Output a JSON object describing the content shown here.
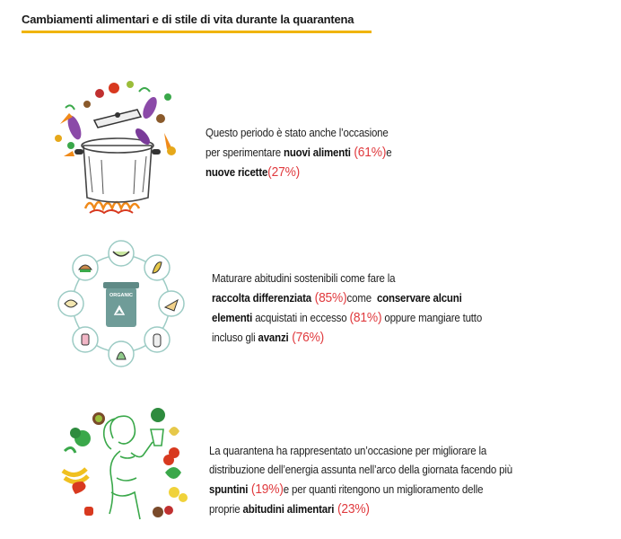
{
  "header": {
    "title": "Cambiamenti alimentari e di stile di vita durante la quarantena"
  },
  "section1": {
    "line1": "Questo periodo è stato anche l’occasione",
    "line2_pre": "per sperimentare ",
    "line2_bold": "nuovi alimenti",
    "line2_pct": " (61%)",
    "line2_post": "e",
    "line3_bold": "nuove ricette",
    "line3_pct": "(27%)"
  },
  "section2": {
    "line1": "Maturare abitudini sostenibili come fare la",
    "line2_bold": "raccolta differenziata",
    "line2_pct": " (85%)",
    "line2_mid": "come  ",
    "line2_bold2": "conservare alcuni",
    "line3_bold": "elementi",
    "line3_mid": " acquistati in eccesso ",
    "line3_pct": "(81%)",
    "line3_post": " oppure mangiare tutto",
    "line4_pre": "incluso gli ",
    "line4_bold": "avanzi",
    "line4_pct": " (76%)",
    "bin_label": "ORGANIC"
  },
  "section3": {
    "line1": "La quarantena ha rappresentato un’occasione per migliorare la",
    "line2": "distribuzione dell’energia assunta nell’arco della giornata facendo più",
    "line3_bold": "spuntini",
    "line3_pct": " (19%)",
    "line3_post": "e per quanti ritengono un miglioramento delle",
    "line4_pre": "proprie ",
    "line4_bold": "abitudini alimentari",
    "line4_pct": " (23%)"
  },
  "colors": {
    "accent_underline": "#f0b400",
    "percent_red": "#e03a3e",
    "green": "#3aa84a",
    "teal": "#3e8f86"
  }
}
